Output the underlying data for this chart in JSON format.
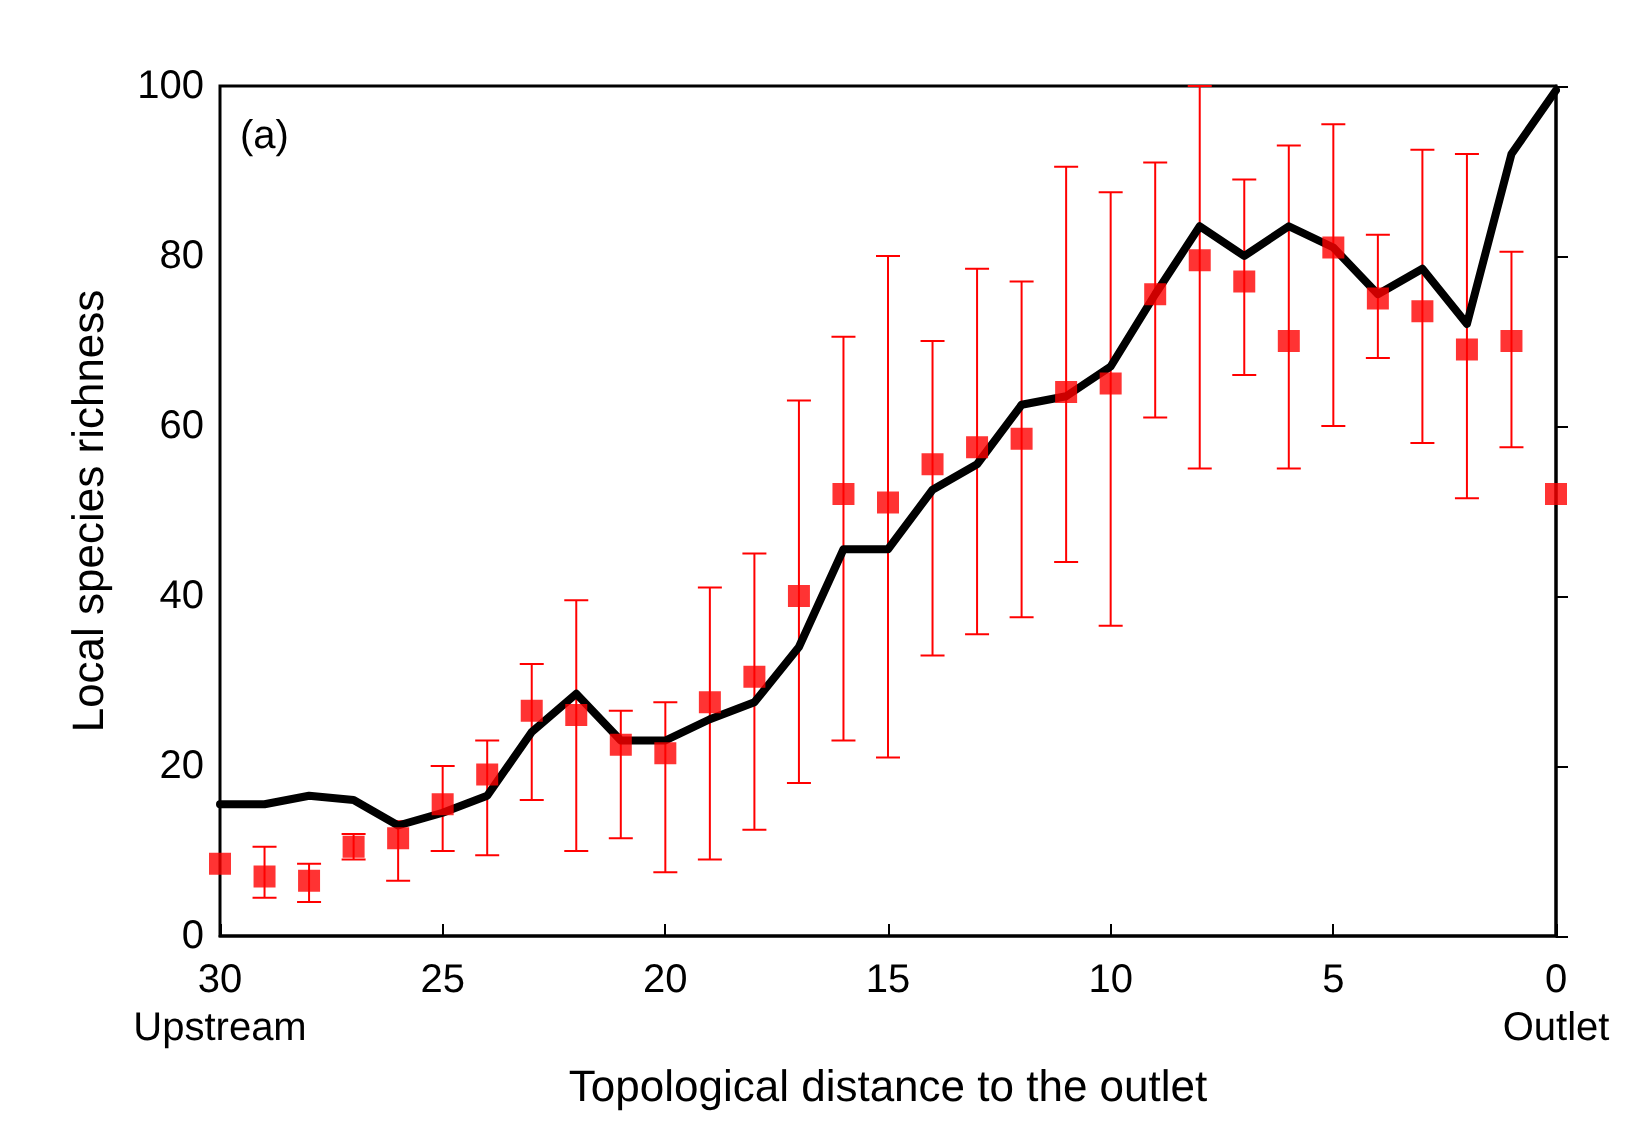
{
  "chart_data": {
    "type": "scatter",
    "xlabel": "Topological distance to the outlet",
    "ylabel": "Local species richness",
    "annotations": [
      "(a)"
    ],
    "x": [
      30,
      29,
      28,
      27,
      26,
      25,
      24,
      23,
      22,
      21,
      20,
      19,
      18,
      17,
      16,
      15,
      14,
      13,
      12,
      11,
      10,
      9,
      8,
      7,
      6,
      5,
      4,
      3,
      2,
      1,
      0
    ],
    "series": [
      {
        "color": "#ff0000",
        "marker": "square",
        "values": [
          8.5,
          7,
          6.5,
          10.5,
          11.5,
          15.5,
          19,
          26.5,
          26,
          22.5,
          21.5,
          27.5,
          30.5,
          40,
          52,
          51,
          55.5,
          57.5,
          58.5,
          64,
          65,
          75.5,
          79.5,
          77,
          70,
          81,
          75,
          73.5,
          69,
          70,
          52
        ],
        "errors": [
          null,
          [
            4.5,
            10.5
          ],
          [
            4,
            8.5
          ],
          [
            9,
            12
          ],
          [
            6.5,
            13.5
          ],
          [
            10,
            20
          ],
          [
            9.5,
            23
          ],
          [
            16,
            32
          ],
          [
            10,
            39.5
          ],
          [
            11.5,
            26.5
          ],
          [
            7.5,
            27.5
          ],
          [
            9,
            41
          ],
          [
            12.5,
            45
          ],
          [
            18,
            63
          ],
          [
            23,
            70.5
          ],
          [
            21,
            80
          ],
          [
            33,
            70
          ],
          [
            35.5,
            78.5
          ],
          [
            37.5,
            77
          ],
          [
            44,
            90.5
          ],
          [
            36.5,
            87.5
          ],
          [
            61,
            91
          ],
          [
            55,
            100
          ],
          [
            66,
            89
          ],
          [
            55,
            93
          ],
          [
            60,
            95.5
          ],
          [
            68,
            82.5
          ],
          [
            58,
            92.5
          ],
          [
            51.5,
            92
          ],
          [
            57.5,
            80.5
          ],
          null
        ]
      },
      {
        "type": "line",
        "color": "#000000",
        "marker": "none",
        "line_style": "solid",
        "values": [
          15.5,
          15.5,
          16.5,
          16,
          13,
          14.5,
          16.5,
          24,
          28.5,
          23,
          23,
          25.5,
          27.5,
          34,
          45.5,
          45.5,
          52.5,
          55.5,
          62.5,
          63.5,
          67,
          75.5,
          83.5,
          80,
          83.5,
          81,
          75.5,
          78.5,
          72,
          92,
          99.5
        ]
      }
    ],
    "xlim": [
      30,
      0
    ],
    "xticks": [
      {
        "value": 30,
        "label": "30\nUpstream"
      },
      25,
      20,
      15,
      10,
      5,
      {
        "value": 0,
        "label": "0\nOutlet"
      }
    ],
    "ylim": [
      0,
      100
    ],
    "yticks": [
      0,
      20,
      40,
      60,
      80,
      100
    ],
    "grid": false
  }
}
